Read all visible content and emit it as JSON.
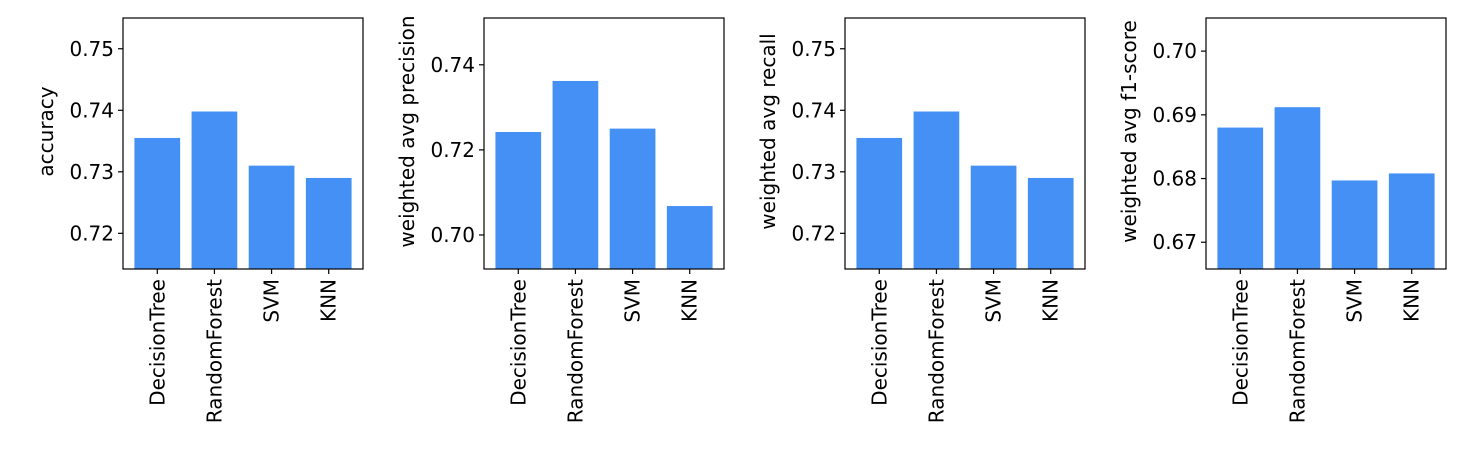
{
  "chart_data": [
    {
      "type": "bar",
      "categories": [
        "DecisionTree",
        "RandomForest",
        "SVM",
        "KNN"
      ],
      "values": [
        0.7355,
        0.7398,
        0.731,
        0.729
      ],
      "title": "",
      "xlabel": "",
      "ylabel": "accuracy",
      "ylim": [
        0.7142,
        0.755
      ],
      "yticks": [
        "0.72",
        "0.73",
        "0.74",
        "0.75"
      ],
      "ytick_values": [
        0.72,
        0.73,
        0.74,
        0.75
      ],
      "bar_color": "#4590f5"
    },
    {
      "type": "bar",
      "categories": [
        "DecisionTree",
        "RandomForest",
        "SVM",
        "KNN"
      ],
      "values": [
        0.7242,
        0.7362,
        0.725,
        0.7068
      ],
      "title": "",
      "xlabel": "",
      "ylabel": "weighted avg precision",
      "ylim": [
        0.692,
        0.751
      ],
      "yticks": [
        "0.70",
        "0.72",
        "0.74"
      ],
      "ytick_values": [
        0.7,
        0.72,
        0.74
      ],
      "bar_color": "#4590f5"
    },
    {
      "type": "bar",
      "categories": [
        "DecisionTree",
        "RandomForest",
        "SVM",
        "KNN"
      ],
      "values": [
        0.7355,
        0.7398,
        0.731,
        0.729
      ],
      "title": "",
      "xlabel": "",
      "ylabel": "weighted avg recall",
      "ylim": [
        0.7142,
        0.755
      ],
      "yticks": [
        "0.72",
        "0.73",
        "0.74",
        "0.75"
      ],
      "ytick_values": [
        0.72,
        0.73,
        0.74,
        0.75
      ],
      "bar_color": "#4590f5"
    },
    {
      "type": "bar",
      "categories": [
        "DecisionTree",
        "RandomForest",
        "SVM",
        "KNN"
      ],
      "values": [
        0.688,
        0.6912,
        0.6797,
        0.6808
      ],
      "title": "",
      "xlabel": "",
      "ylabel": "weighted avg f1-score",
      "ylim": [
        0.6658,
        0.7052
      ],
      "yticks": [
        "0.67",
        "0.68",
        "0.69",
        "0.70"
      ],
      "ytick_values": [
        0.67,
        0.68,
        0.69,
        0.7
      ],
      "bar_color": "#4590f5"
    }
  ]
}
